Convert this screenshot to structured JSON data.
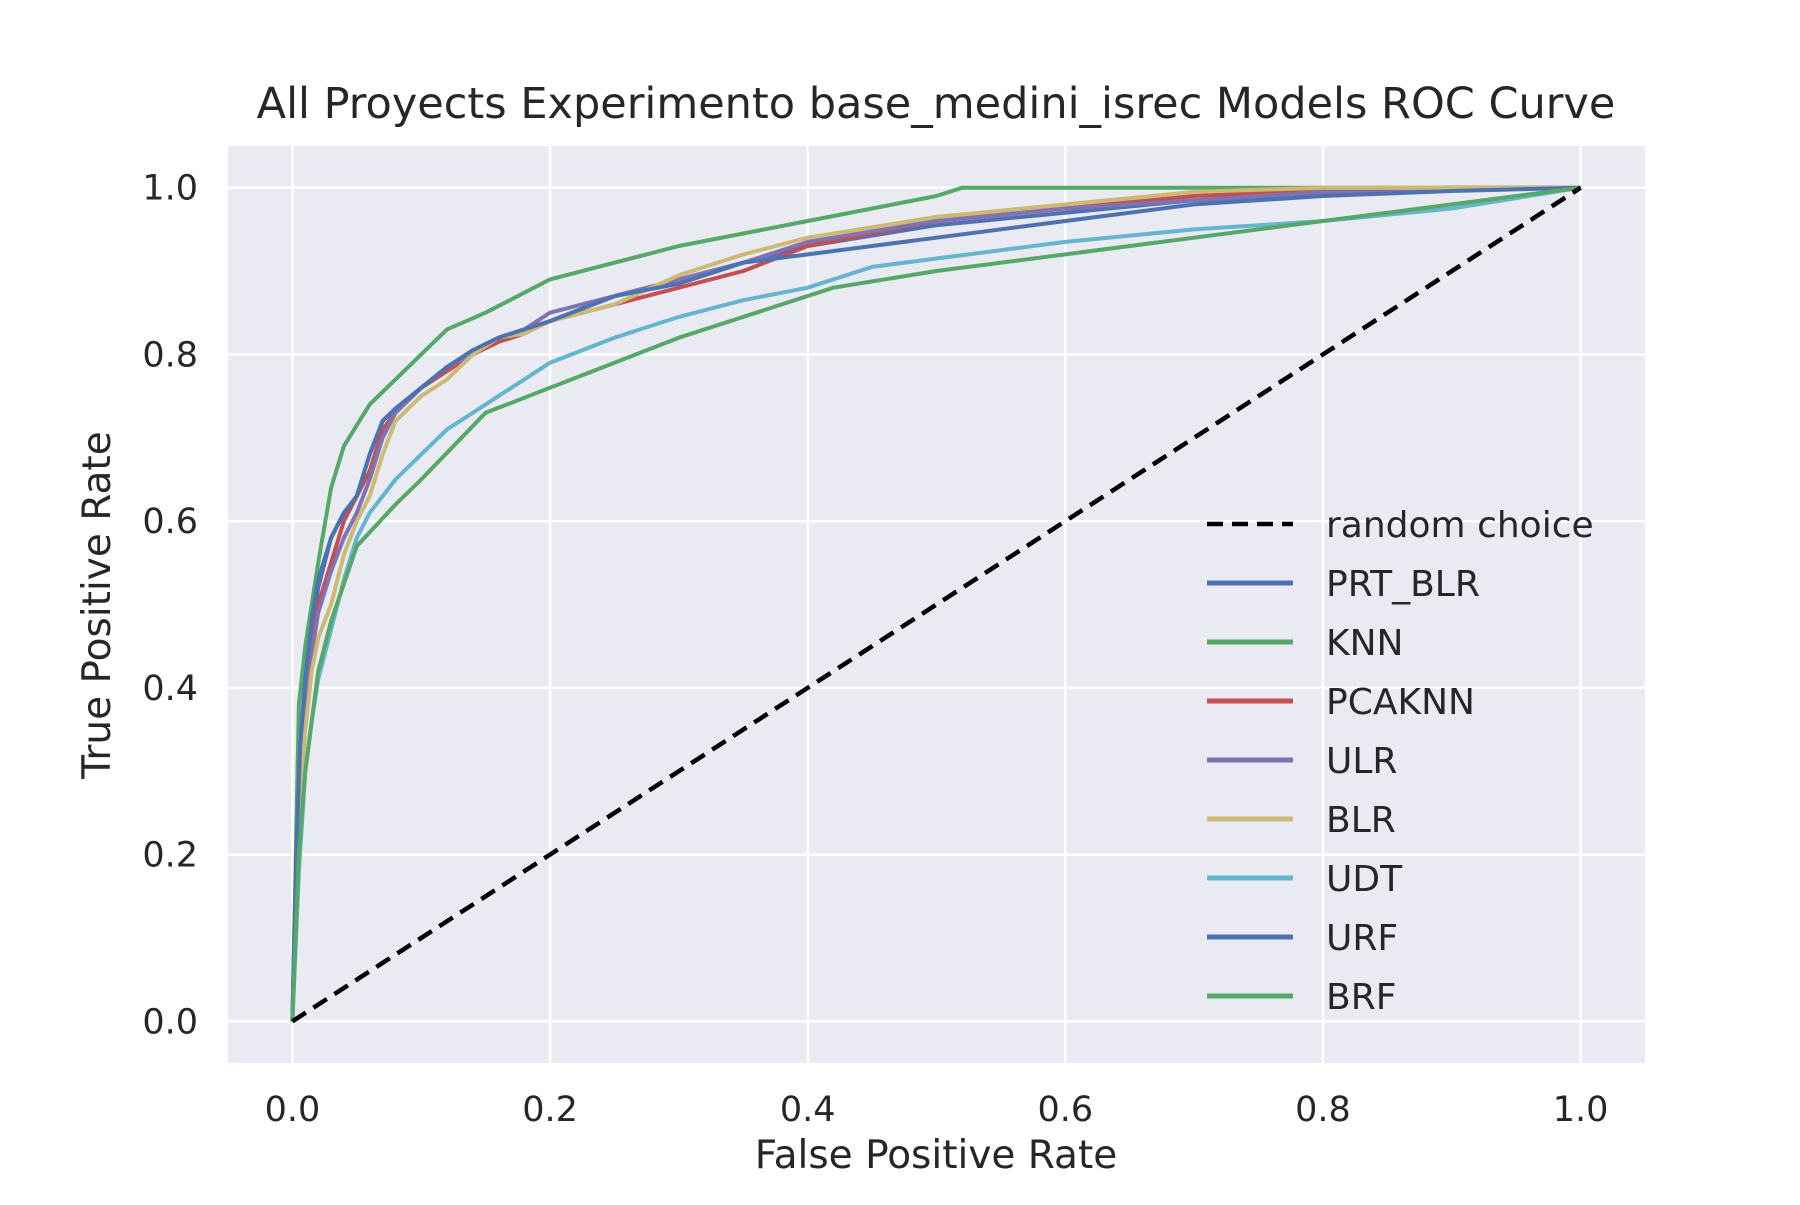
{
  "chart_data": {
    "type": "line",
    "title": "All Proyects Experimento base_medini_isrec Models ROC Curve",
    "xlabel": "False Positive Rate",
    "ylabel": "True Positive Rate",
    "xlim": [
      -0.05,
      1.05
    ],
    "ylim": [
      -0.05,
      1.05
    ],
    "xticks": [
      "0.0",
      "0.2",
      "0.4",
      "0.6",
      "0.8",
      "1.0"
    ],
    "yticks": [
      "0.0",
      "0.2",
      "0.4",
      "0.6",
      "0.8",
      "1.0"
    ],
    "grid": true,
    "legend_position": "center-right",
    "background": "#eaeaf2",
    "grid_color": "#ffffff",
    "series": [
      {
        "name": "random choice",
        "color": "#000000",
        "dashed": true,
        "x": [
          0,
          1
        ],
        "y": [
          0,
          1
        ]
      },
      {
        "name": "PRT_BLR",
        "color": "#4c72b0",
        "x": [
          0,
          0.003,
          0.006,
          0.01,
          0.015,
          0.02,
          0.03,
          0.04,
          0.05,
          0.06,
          0.07,
          0.08,
          0.1,
          0.12,
          0.14,
          0.16,
          0.18,
          0.2,
          0.25,
          0.3,
          0.35,
          0.4,
          0.5,
          0.6,
          0.7,
          0.8,
          0.9,
          1.0
        ],
        "y": [
          0,
          0.2,
          0.33,
          0.41,
          0.47,
          0.52,
          0.58,
          0.61,
          0.63,
          0.68,
          0.72,
          0.735,
          0.76,
          0.78,
          0.8,
          0.82,
          0.83,
          0.84,
          0.87,
          0.89,
          0.91,
          0.93,
          0.955,
          0.97,
          0.985,
          0.993,
          0.998,
          1.0
        ]
      },
      {
        "name": "KNN",
        "color": "#55a868",
        "x": [
          0,
          0.005,
          0.01,
          0.02,
          0.03,
          0.04,
          0.06,
          0.08,
          0.1,
          0.12,
          0.15,
          0.2,
          0.25,
          0.3,
          0.35,
          0.4,
          0.45,
          0.5,
          0.52,
          0.6,
          0.7,
          0.8,
          0.9,
          1.0
        ],
        "y": [
          0,
          0.38,
          0.45,
          0.55,
          0.64,
          0.69,
          0.74,
          0.77,
          0.8,
          0.83,
          0.85,
          0.89,
          0.91,
          0.93,
          0.945,
          0.96,
          0.975,
          0.99,
          1.0,
          1.0,
          1.0,
          1.0,
          1.0,
          1.0
        ]
      },
      {
        "name": "PCAKNN",
        "color": "#c44e52",
        "x": [
          0,
          0.003,
          0.006,
          0.01,
          0.015,
          0.02,
          0.03,
          0.04,
          0.05,
          0.06,
          0.07,
          0.08,
          0.1,
          0.12,
          0.14,
          0.16,
          0.18,
          0.2,
          0.25,
          0.3,
          0.35,
          0.4,
          0.5,
          0.6,
          0.7,
          0.8,
          0.9,
          1.0
        ],
        "y": [
          0,
          0.18,
          0.3,
          0.38,
          0.45,
          0.5,
          0.55,
          0.6,
          0.63,
          0.66,
          0.71,
          0.73,
          0.76,
          0.78,
          0.8,
          0.815,
          0.825,
          0.84,
          0.86,
          0.88,
          0.9,
          0.93,
          0.96,
          0.975,
          0.99,
          0.997,
          1.0,
          1.0
        ]
      },
      {
        "name": "ULR",
        "color": "#8172b2",
        "x": [
          0,
          0.003,
          0.006,
          0.01,
          0.015,
          0.02,
          0.03,
          0.04,
          0.05,
          0.06,
          0.07,
          0.08,
          0.1,
          0.12,
          0.14,
          0.16,
          0.18,
          0.2,
          0.25,
          0.3,
          0.35,
          0.4,
          0.5,
          0.6,
          0.7,
          0.8,
          0.9,
          1.0
        ],
        "y": [
          0,
          0.18,
          0.3,
          0.37,
          0.44,
          0.49,
          0.54,
          0.58,
          0.61,
          0.65,
          0.7,
          0.73,
          0.76,
          0.785,
          0.8,
          0.82,
          0.83,
          0.85,
          0.87,
          0.89,
          0.91,
          0.935,
          0.96,
          0.975,
          0.985,
          0.995,
          1.0,
          1.0
        ]
      },
      {
        "name": "BLR",
        "color": "#ccb974",
        "x": [
          0,
          0.003,
          0.006,
          0.01,
          0.015,
          0.02,
          0.03,
          0.04,
          0.05,
          0.06,
          0.07,
          0.08,
          0.1,
          0.12,
          0.14,
          0.16,
          0.18,
          0.2,
          0.25,
          0.3,
          0.35,
          0.4,
          0.5,
          0.6,
          0.7,
          0.8,
          0.9,
          1.0
        ],
        "y": [
          0,
          0.15,
          0.27,
          0.35,
          0.42,
          0.46,
          0.5,
          0.56,
          0.6,
          0.63,
          0.68,
          0.72,
          0.75,
          0.77,
          0.8,
          0.82,
          0.825,
          0.84,
          0.86,
          0.895,
          0.92,
          0.94,
          0.965,
          0.98,
          0.995,
          1.0,
          1.0,
          1.0
        ]
      },
      {
        "name": "UDT",
        "color": "#64b5cd",
        "x": [
          0,
          0.005,
          0.01,
          0.015,
          0.02,
          0.03,
          0.04,
          0.05,
          0.06,
          0.08,
          0.1,
          0.12,
          0.14,
          0.16,
          0.18,
          0.2,
          0.25,
          0.3,
          0.35,
          0.4,
          0.45,
          0.5,
          0.6,
          0.7,
          0.75,
          0.8,
          0.9,
          1.0
        ],
        "y": [
          0,
          0.18,
          0.3,
          0.36,
          0.41,
          0.47,
          0.53,
          0.58,
          0.61,
          0.65,
          0.68,
          0.71,
          0.73,
          0.75,
          0.77,
          0.79,
          0.82,
          0.845,
          0.865,
          0.88,
          0.905,
          0.915,
          0.935,
          0.95,
          0.955,
          0.96,
          0.975,
          1.0
        ]
      },
      {
        "name": "URF",
        "color": "#4c72b0",
        "x": [
          0,
          0.003,
          0.006,
          0.01,
          0.015,
          0.02,
          0.03,
          0.04,
          0.05,
          0.06,
          0.07,
          0.08,
          0.1,
          0.12,
          0.14,
          0.16,
          0.18,
          0.2,
          0.25,
          0.3,
          0.35,
          0.4,
          0.45,
          0.5,
          0.6,
          0.7,
          0.8,
          0.9,
          1.0
        ],
        "y": [
          0,
          0.2,
          0.33,
          0.41,
          0.48,
          0.53,
          0.58,
          0.61,
          0.63,
          0.68,
          0.72,
          0.735,
          0.76,
          0.785,
          0.805,
          0.82,
          0.83,
          0.84,
          0.87,
          0.885,
          0.91,
          0.92,
          0.93,
          0.94,
          0.96,
          0.98,
          0.99,
          0.996,
          1.0
        ]
      },
      {
        "name": "BRF",
        "color": "#55a868",
        "x": [
          0,
          0.005,
          0.01,
          0.02,
          0.03,
          0.05,
          0.08,
          0.1,
          0.15,
          0.2,
          0.3,
          0.42,
          0.5,
          0.6,
          0.7,
          0.8,
          0.9,
          1.0
        ],
        "y": [
          0,
          0.2,
          0.3,
          0.42,
          0.48,
          0.57,
          0.62,
          0.65,
          0.73,
          0.76,
          0.82,
          0.88,
          0.9,
          0.92,
          0.94,
          0.96,
          0.98,
          1.0
        ]
      }
    ]
  }
}
